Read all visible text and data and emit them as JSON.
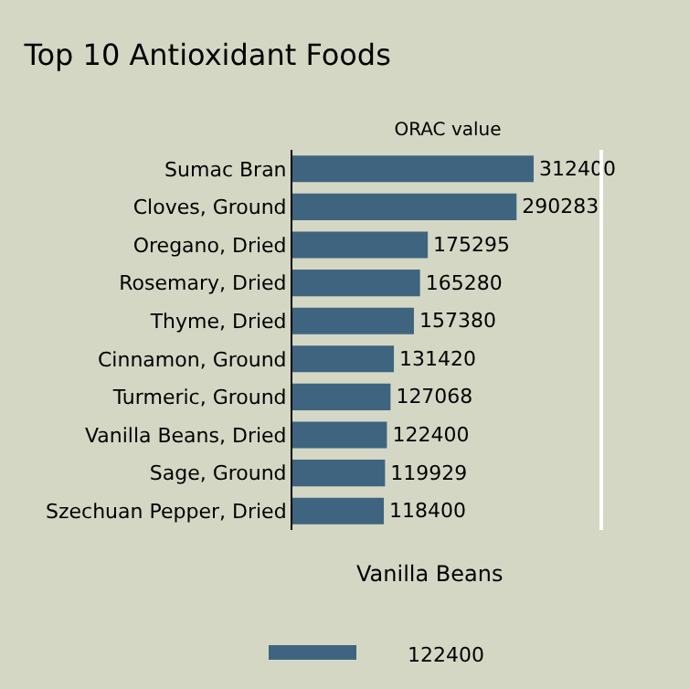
{
  "chart_data": {
    "type": "bar",
    "orientation": "horizontal",
    "title": "Top 10 Antioxidant Foods",
    "xlabel": "ORAC value",
    "categories": [
      "Sumac Bran",
      "Cloves, Ground",
      "Oregano, Dried",
      "Rosemary, Dried",
      "Thyme, Dried",
      "Cinnamon, Ground",
      "Turmeric, Ground",
      "Vanilla Beans, Dried",
      "Sage, Ground",
      "Szechuan Pepper, Dried"
    ],
    "values": [
      312400,
      290283,
      175295,
      165280,
      157380,
      131420,
      127068,
      122400,
      119929,
      118400
    ],
    "color": "#3f6480",
    "data_labels": true,
    "ref_lines": [
      {
        "axis": "x",
        "value": 400000,
        "color": "#ffffff"
      }
    ],
    "tick_labels": "y",
    "annotations": [
      "Vanilla Beans",
      "122400"
    ]
  }
}
